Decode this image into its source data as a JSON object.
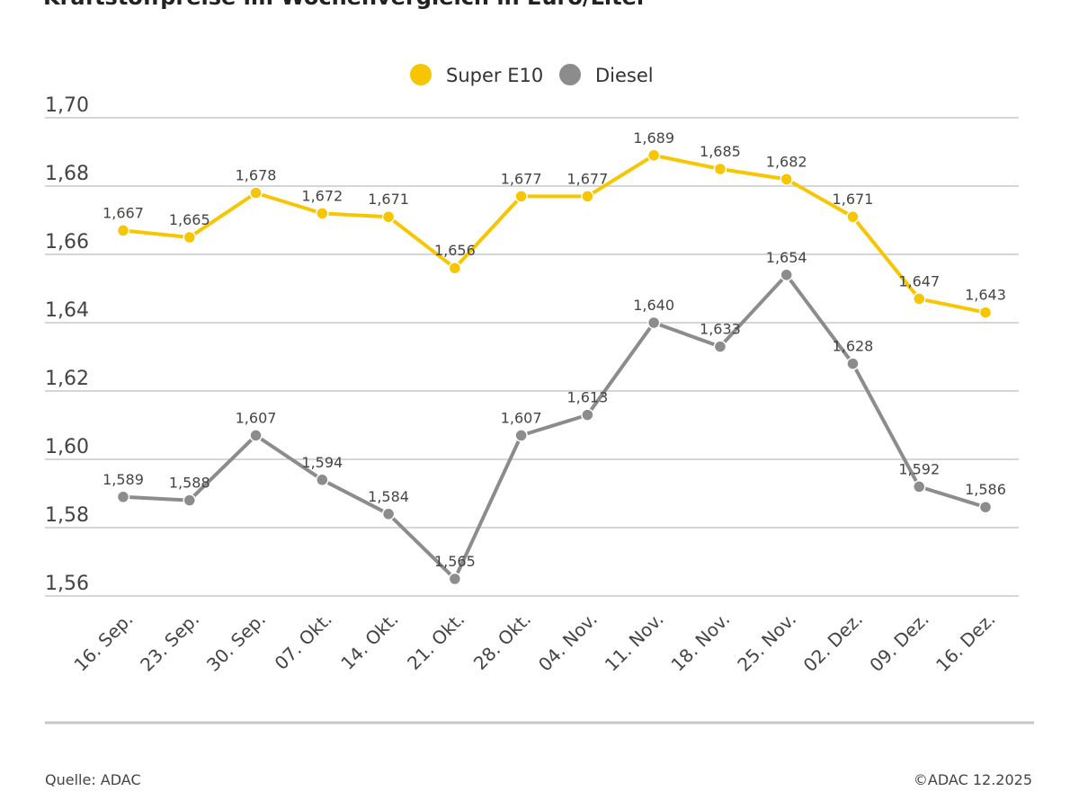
{
  "chart_data": {
    "type": "line",
    "title": "Kraftstoffpreise im Wochenvergleich in Euro/Liter",
    "categories": [
      "16. Sep.",
      "23. Sep.",
      "30. Sep.",
      "07. Okt.",
      "14. Okt.",
      "21. Okt.",
      "28. Okt.",
      "04. Nov.",
      "11. Nov.",
      "18. Nov.",
      "25. Nov.",
      "02. Dez.",
      "09. Dez.",
      "16. Dez."
    ],
    "series": [
      {
        "name": "Super E10",
        "color": "#f7c600",
        "values": [
          1.667,
          1.665,
          1.678,
          1.672,
          1.671,
          1.656,
          1.677,
          1.677,
          1.689,
          1.685,
          1.682,
          1.671,
          1.647,
          1.643
        ]
      },
      {
        "name": "Diesel",
        "color": "#8c8c8c",
        "values": [
          1.589,
          1.588,
          1.607,
          1.594,
          1.584,
          1.565,
          1.607,
          1.613,
          1.64,
          1.633,
          1.654,
          1.628,
          1.592,
          1.586
        ]
      }
    ],
    "yticks": [
      "1,56",
      "1,58",
      "1,60",
      "1,62",
      "1,64",
      "1,66",
      "1,68",
      "1,70"
    ],
    "ylim": [
      1.56,
      1.7
    ],
    "grid": true,
    "legend": "top-center"
  },
  "footer": {
    "source": "Quelle: ADAC",
    "copyright": "©ADAC 12.2025"
  }
}
